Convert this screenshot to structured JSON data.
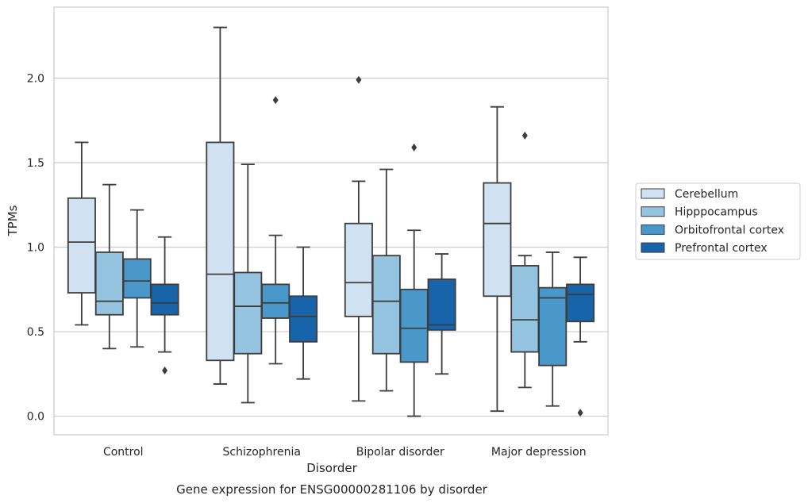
{
  "chart_data": {
    "type": "box",
    "caption": "Gene expression for ENSG00000281106 by disorder",
    "xlabel": "Disorder",
    "ylabel": "TPMs",
    "ylim": [
      -0.11,
      2.42
    ],
    "yticks": [
      "0.0",
      "0.5",
      "1.0",
      "1.5",
      "2.0"
    ],
    "ytick_values": [
      0.0,
      0.5,
      1.0,
      1.5,
      2.0
    ],
    "grid": "horizontal",
    "legend_position": "right",
    "categories": [
      "Control",
      "Schizophrenia",
      "Bipolar disorder",
      "Major depression"
    ],
    "colors": [
      "#d0e1f2",
      "#94c4df",
      "#4a98c9",
      "#1764ab"
    ],
    "series": [
      {
        "name": "Cerebellum",
        "boxes": [
          {
            "whisker_low": 0.54,
            "q1": 0.73,
            "median": 1.03,
            "q3": 1.29,
            "whisker_high": 1.62,
            "outliers": []
          },
          {
            "whisker_low": 0.19,
            "q1": 0.33,
            "median": 0.84,
            "q3": 1.62,
            "whisker_high": 2.3,
            "outliers": []
          },
          {
            "whisker_low": 0.09,
            "q1": 0.59,
            "median": 0.79,
            "q3": 1.14,
            "whisker_high": 1.39,
            "outliers": [
              1.99
            ]
          },
          {
            "whisker_low": 0.03,
            "q1": 0.71,
            "median": 1.14,
            "q3": 1.38,
            "whisker_high": 1.83,
            "outliers": []
          }
        ]
      },
      {
        "name": "Hipppocampus",
        "boxes": [
          {
            "whisker_low": 0.4,
            "q1": 0.6,
            "median": 0.68,
            "q3": 0.97,
            "whisker_high": 1.37,
            "outliers": []
          },
          {
            "whisker_low": 0.08,
            "q1": 0.37,
            "median": 0.65,
            "q3": 0.85,
            "whisker_high": 1.49,
            "outliers": []
          },
          {
            "whisker_low": 0.15,
            "q1": 0.37,
            "median": 0.68,
            "q3": 0.95,
            "whisker_high": 1.46,
            "outliers": []
          },
          {
            "whisker_low": 0.17,
            "q1": 0.38,
            "median": 0.57,
            "q3": 0.89,
            "whisker_high": 0.95,
            "outliers": [
              1.66
            ]
          }
        ]
      },
      {
        "name": "Orbitofrontal cortex",
        "boxes": [
          {
            "whisker_low": 0.41,
            "q1": 0.7,
            "median": 0.8,
            "q3": 0.93,
            "whisker_high": 1.22,
            "outliers": []
          },
          {
            "whisker_low": 0.31,
            "q1": 0.58,
            "median": 0.67,
            "q3": 0.78,
            "whisker_high": 1.07,
            "outliers": [
              1.87
            ]
          },
          {
            "whisker_low": 0.0,
            "q1": 0.32,
            "median": 0.52,
            "q3": 0.75,
            "whisker_high": 1.1,
            "outliers": [
              1.59
            ]
          },
          {
            "whisker_low": 0.06,
            "q1": 0.3,
            "median": 0.7,
            "q3": 0.76,
            "whisker_high": 0.97,
            "outliers": []
          }
        ]
      },
      {
        "name": "Prefrontal cortex",
        "boxes": [
          {
            "whisker_low": 0.38,
            "q1": 0.6,
            "median": 0.67,
            "q3": 0.78,
            "whisker_high": 1.06,
            "outliers": [
              0.27
            ]
          },
          {
            "whisker_low": 0.22,
            "q1": 0.44,
            "median": 0.59,
            "q3": 0.71,
            "whisker_high": 1.0,
            "outliers": []
          },
          {
            "whisker_low": 0.25,
            "q1": 0.51,
            "median": 0.54,
            "q3": 0.81,
            "whisker_high": 0.96,
            "outliers": []
          },
          {
            "whisker_low": 0.44,
            "q1": 0.56,
            "median": 0.72,
            "q3": 0.78,
            "whisker_high": 0.94,
            "outliers": [
              0.02
            ]
          }
        ]
      }
    ]
  }
}
